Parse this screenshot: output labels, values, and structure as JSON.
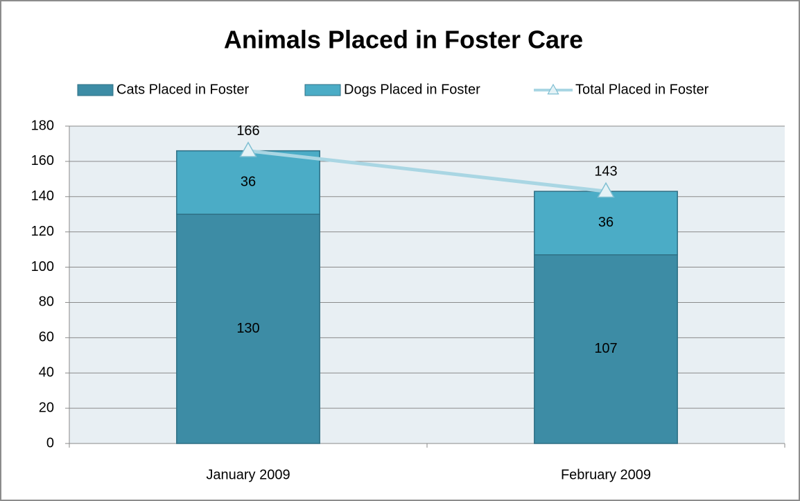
{
  "chart_data": {
    "type": "bar",
    "stacked": true,
    "title": "Animals Placed in Foster Care",
    "categories": [
      "January 2009",
      "February 2009"
    ],
    "series": [
      {
        "name": "Cats Placed in Foster",
        "type": "bar",
        "color": "#3d8ca5",
        "values": [
          130,
          107
        ]
      },
      {
        "name": "Dogs Placed in Foster",
        "type": "bar",
        "color": "#4bacc6",
        "values": [
          36,
          36
        ]
      },
      {
        "name": "Total Placed in Foster",
        "type": "line",
        "color": "#a9d6e3",
        "values": [
          166,
          143
        ]
      }
    ],
    "ylim": [
      0,
      180
    ],
    "yticks": [
      0,
      20,
      40,
      60,
      80,
      100,
      120,
      140,
      160,
      180
    ],
    "grid": true,
    "legend": "top"
  }
}
